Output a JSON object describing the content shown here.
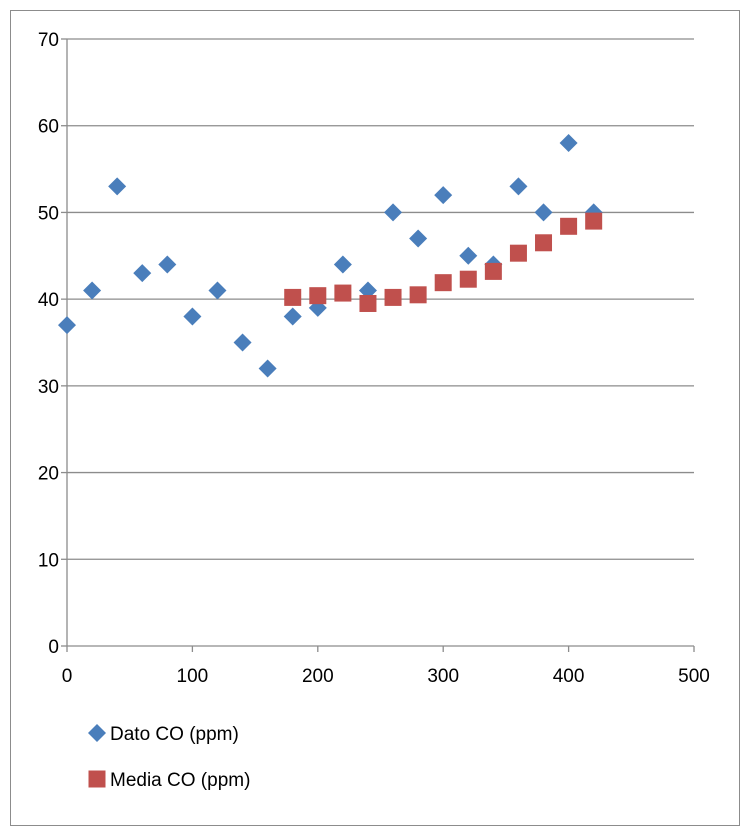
{
  "chart_data": {
    "type": "scatter",
    "title": "",
    "xlabel": "",
    "ylabel": "",
    "xlim": [
      0,
      500
    ],
    "ylim": [
      0,
      70
    ],
    "x_ticks": [
      0,
      100,
      200,
      300,
      400,
      500
    ],
    "y_ticks": [
      0,
      10,
      20,
      30,
      40,
      50,
      60,
      70
    ],
    "x_tick_labels": [
      "0",
      "100",
      "200",
      "300",
      "400",
      "500"
    ],
    "y_tick_labels": [
      "0",
      "10",
      "20",
      "30",
      "40",
      "50",
      "60",
      "70"
    ],
    "grid": "horizontal",
    "legend_position": "bottom-left",
    "series": [
      {
        "name": "Dato CO (ppm)",
        "marker": "diamond",
        "color": "#4a7ebb",
        "x": [
          0,
          20,
          40,
          60,
          80,
          100,
          120,
          140,
          160,
          180,
          200,
          220,
          240,
          260,
          280,
          300,
          320,
          340,
          360,
          380,
          400,
          420
        ],
        "y": [
          37,
          41,
          53,
          43,
          44,
          38,
          41,
          35,
          32,
          38,
          39,
          44,
          41,
          50,
          47,
          52,
          45,
          44,
          53,
          50,
          58,
          50
        ]
      },
      {
        "name": "Media CO (ppm)",
        "marker": "square",
        "color": "#c0504d",
        "x": [
          180,
          200,
          220,
          240,
          260,
          280,
          300,
          320,
          340,
          360,
          380,
          400,
          420
        ],
        "y": [
          40.2,
          40.4,
          40.7,
          39.5,
          40.2,
          40.5,
          41.9,
          42.3,
          43.2,
          45.3,
          46.5,
          48.4,
          49
        ]
      }
    ]
  }
}
